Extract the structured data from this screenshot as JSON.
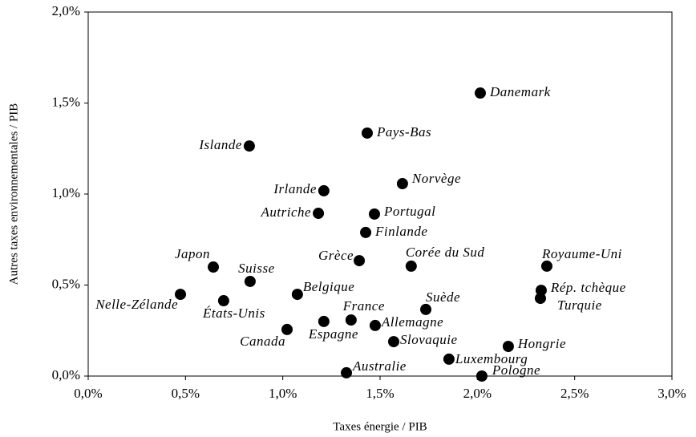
{
  "chart_data": {
    "type": "scatter",
    "xlabel": "Taxes énergie / PIB",
    "ylabel": "Autres taxes environnementales / PIB",
    "color": "#000000",
    "xlim": [
      0,
      3
    ],
    "ylim": [
      0,
      2
    ],
    "xticks": [
      {
        "value": 0,
        "label": "0,0%"
      },
      {
        "value": 0.5,
        "label": "0,5%"
      },
      {
        "value": 1,
        "label": "1,0%"
      },
      {
        "value": 1.5,
        "label": "1,5%"
      },
      {
        "value": 2,
        "label": "2,0%"
      },
      {
        "value": 2.5,
        "label": "2,5%"
      },
      {
        "value": 3,
        "label": "3,0%"
      }
    ],
    "yticks": [
      {
        "value": 0,
        "label": "0,0%"
      },
      {
        "value": 0.5,
        "label": "0,5%"
      },
      {
        "value": 1,
        "label": "1,0%"
      },
      {
        "value": 1.5,
        "label": "1,5%"
      },
      {
        "value": 2,
        "label": "2,0%"
      }
    ],
    "point_labels": [
      "Danemark",
      "Pays-Bas",
      "Islande",
      "Irlande",
      "Norvège",
      "Autriche",
      "Portugal",
      "Finlande",
      "Japon",
      "Suisse",
      "Grèce",
      "Corée du Sud",
      "Royaume-Uni",
      "Rép. tchèque",
      "Turquie",
      "Nelle-Zélande",
      "États-Unis",
      "Belgique",
      "Canada",
      "Espagne",
      "France",
      "Allemagne",
      "Suède",
      "Slovaquie",
      "Hongrie",
      "Luxembourg",
      "Australie",
      "Pologne"
    ],
    "x": [
      2.015,
      1.434,
      0.828,
      1.211,
      1.615,
      1.183,
      1.471,
      1.426,
      0.643,
      0.832,
      1.393,
      1.66,
      2.357,
      2.328,
      2.324,
      0.474,
      0.696,
      1.075,
      1.022,
      1.211,
      1.351,
      1.475,
      1.735,
      1.57,
      2.159,
      1.854,
      1.327,
      2.023
    ],
    "values": [
      1.555,
      1.335,
      1.264,
      1.018,
      1.057,
      0.894,
      0.89,
      0.789,
      0.599,
      0.52,
      0.634,
      0.604,
      0.604,
      0.471,
      0.427,
      0.449,
      0.414,
      0.449,
      0.256,
      0.3,
      0.308,
      0.278,
      0.366,
      0.189,
      0.163,
      0.093,
      0.018,
      0
    ]
  }
}
